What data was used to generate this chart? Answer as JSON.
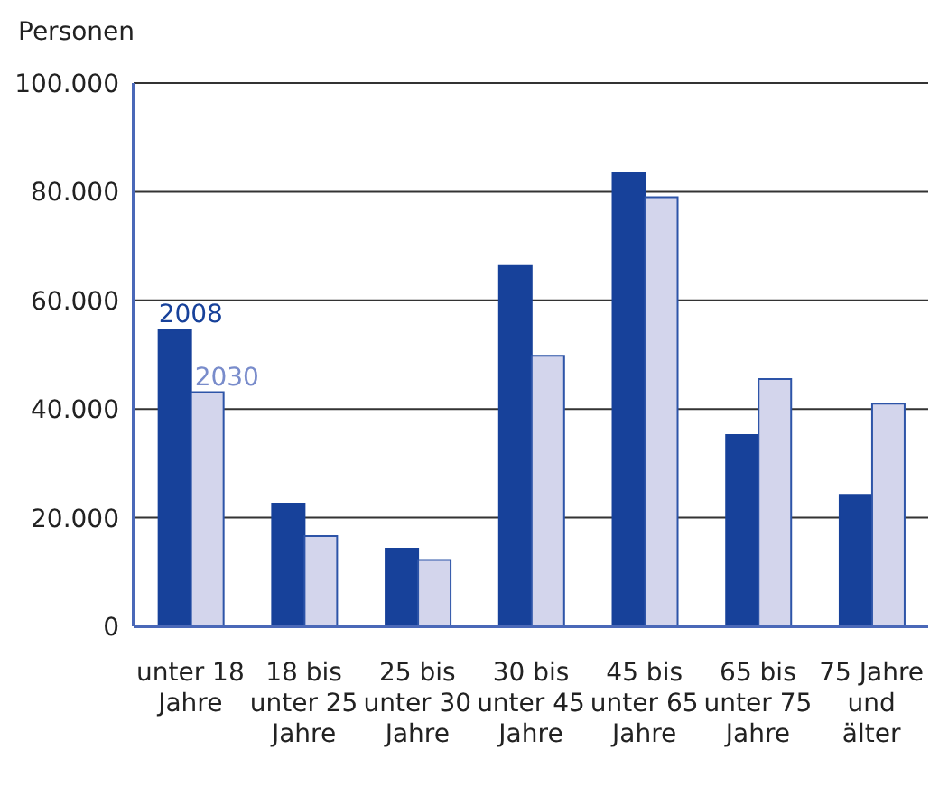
{
  "chart_data": {
    "type": "bar",
    "ylabel": "Personen",
    "categories": [
      "unter 18 Jahre",
      "18 bis unter 25 Jahre",
      "25 bis unter 30 Jahre",
      "30 bis unter 45 Jahre",
      "45 bis unter 65 Jahre",
      "65 bis unter 75 Jahre",
      "75 Jahre und älter"
    ],
    "series": [
      {
        "name": "2008",
        "color": "#17419a",
        "values": [
          54600,
          22600,
          14300,
          66300,
          83400,
          35200,
          24200
        ]
      },
      {
        "name": "2030",
        "color": "#d3d5ec",
        "values": [
          43100,
          16600,
          12200,
          49800,
          79000,
          45500,
          41000
        ]
      }
    ],
    "ylim": [
      0,
      100000
    ],
    "yticks": [
      0,
      {
        "value": 20000,
        "label": "20.000"
      },
      {
        "value": 40000,
        "label": "40.000"
      },
      {
        "value": 60000,
        "label": "60.000"
      },
      {
        "value": 80000,
        "label": "80.000"
      },
      {
        "value": 100000,
        "label": "100.000"
      }
    ],
    "grid": "y",
    "legend": false
  }
}
